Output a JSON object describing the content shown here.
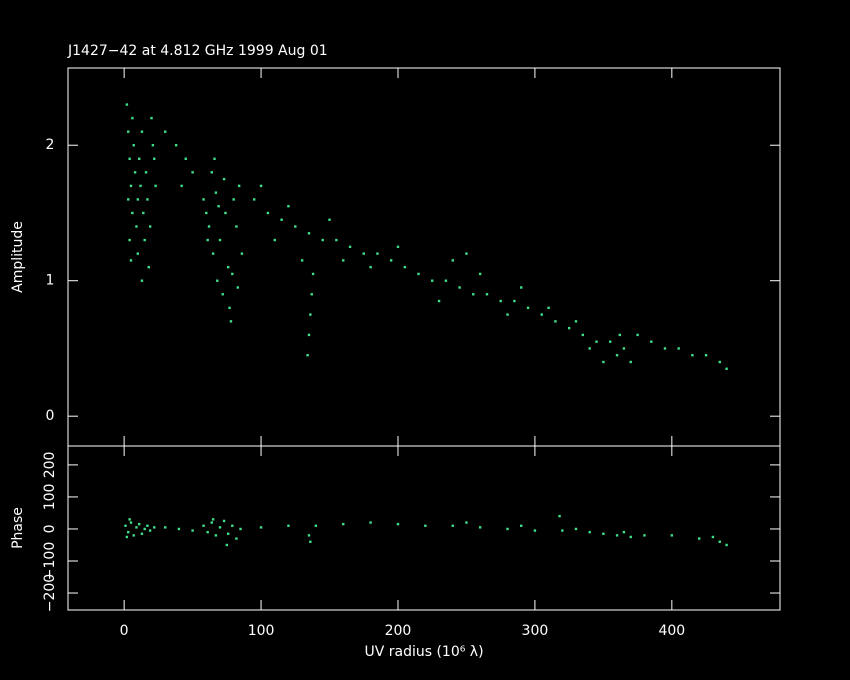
{
  "chart_data": [
    {
      "type": "scatter",
      "title": "J1427−42 at 4.812 GHz 1999 Aug 01",
      "ylabel": "Amplitude",
      "color": "#3fe08a",
      "xlim": [
        -41,
        479
      ],
      "xticks": [
        0,
        100,
        200,
        300,
        400
      ],
      "ylim": [
        -0.22,
        2.57
      ],
      "yticks": [
        0,
        1,
        2
      ],
      "x": [
        2,
        3,
        4,
        5,
        6,
        4,
        3,
        7,
        8,
        9,
        10,
        11,
        12,
        13,
        14,
        15,
        16,
        17,
        18,
        20,
        21,
        22,
        23,
        19,
        6,
        10,
        13,
        5,
        30,
        38,
        45,
        50,
        42,
        58,
        60,
        62,
        64,
        66,
        65,
        68,
        70,
        72,
        74,
        76,
        78,
        80,
        82,
        84,
        86,
        67,
        73,
        77,
        61,
        69,
        79,
        83,
        95,
        105,
        115,
        125,
        135,
        145,
        155,
        165,
        175,
        185,
        195,
        205,
        215,
        225,
        235,
        245,
        255,
        265,
        275,
        285,
        295,
        305,
        315,
        325,
        335,
        345,
        355,
        365,
        375,
        385,
        395,
        405,
        415,
        425,
        435,
        440,
        110,
        150,
        200,
        240,
        260,
        290,
        310,
        330,
        350,
        360,
        370,
        362,
        340,
        280,
        230,
        180,
        160,
        130,
        100,
        120,
        250,
        134,
        135,
        136,
        137,
        138
      ],
      "y": [
        2.3,
        2.1,
        1.9,
        1.7,
        1.5,
        1.3,
        1.6,
        2.0,
        1.8,
        1.4,
        1.2,
        1.9,
        1.7,
        2.1,
        1.5,
        1.3,
        1.8,
        1.6,
        1.1,
        2.2,
        2.0,
        1.9,
        1.7,
        1.4,
        2.2,
        1.6,
        1.0,
        1.15,
        2.1,
        2.0,
        1.9,
        1.8,
        1.7,
        1.6,
        1.5,
        1.4,
        1.8,
        1.9,
        1.2,
        1.0,
        1.3,
        0.9,
        1.5,
        1.1,
        0.7,
        1.6,
        1.4,
        1.7,
        1.2,
        1.65,
        1.75,
        0.8,
        1.3,
        1.55,
        1.05,
        0.95,
        1.6,
        1.5,
        1.45,
        1.4,
        1.35,
        1.3,
        1.3,
        1.25,
        1.2,
        1.2,
        1.15,
        1.1,
        1.05,
        1.0,
        1.0,
        0.95,
        0.9,
        0.9,
        0.85,
        0.85,
        0.8,
        0.75,
        0.7,
        0.65,
        0.6,
        0.55,
        0.55,
        0.5,
        0.6,
        0.55,
        0.5,
        0.5,
        0.45,
        0.45,
        0.4,
        0.35,
        1.3,
        1.45,
        1.25,
        1.15,
        1.05,
        0.95,
        0.8,
        0.7,
        0.4,
        0.45,
        0.4,
        0.6,
        0.5,
        0.75,
        0.85,
        1.1,
        1.15,
        1.15,
        1.7,
        1.55,
        1.2,
        0.45,
        0.6,
        0.75,
        0.9,
        1.05
      ]
    },
    {
      "type": "scatter",
      "ylabel": "Phase",
      "xlabel": "UV radius  (10⁶ λ)",
      "color": "#3fe08a",
      "xlim": [
        -41,
        479
      ],
      "xticks": [
        0,
        100,
        200,
        300,
        400
      ],
      "ylim": [
        -253,
        259
      ],
      "yticks": [
        {
          "value": -200,
          "label": "−200"
        },
        {
          "value": -100,
          "label": "−100"
        },
        0,
        100,
        200
      ],
      "x": [
        1,
        3,
        5,
        7,
        9,
        11,
        13,
        15,
        17,
        19,
        2,
        22,
        4,
        30,
        40,
        50,
        58,
        61,
        64,
        67,
        70,
        73,
        76,
        79,
        82,
        85,
        75,
        65,
        100,
        120,
        135,
        136,
        140,
        160,
        180,
        200,
        220,
        240,
        260,
        280,
        300,
        320,
        340,
        350,
        360,
        370,
        380,
        400,
        420,
        440,
        435,
        430,
        318,
        250,
        290,
        330,
        365
      ],
      "y": [
        10,
        -10,
        20,
        -20,
        5,
        15,
        -15,
        0,
        10,
        -5,
        -25,
        5,
        30,
        5,
        0,
        -5,
        10,
        -10,
        20,
        -20,
        5,
        25,
        -15,
        10,
        -30,
        0,
        -50,
        30,
        5,
        10,
        -20,
        -40,
        10,
        15,
        20,
        15,
        10,
        10,
        5,
        0,
        -5,
        -5,
        -10,
        -15,
        -20,
        -25,
        -20,
        -20,
        -30,
        -50,
        -40,
        -25,
        40,
        20,
        10,
        0,
        -10
      ]
    }
  ]
}
